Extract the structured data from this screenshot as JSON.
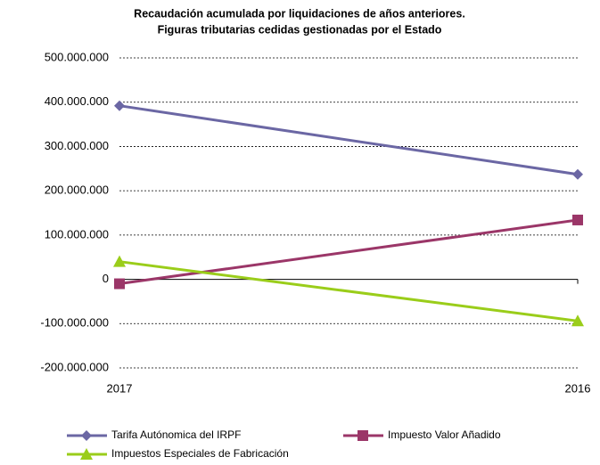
{
  "chart_data": {
    "type": "line",
    "title": [
      "Recaudación acumulada por liquidaciones de años anteriores.",
      "Figuras tributarias cedidas gestionadas por el Estado"
    ],
    "categories": [
      "2017",
      "2016"
    ],
    "series": [
      {
        "name": "Tarifa Autónomica del IRPF",
        "color": "#6b67a4",
        "marker": "diamond",
        "values": [
          392000000,
          237000000
        ]
      },
      {
        "name": "Impuesto Valor Añadido",
        "color": "#9b3668",
        "marker": "square",
        "values": [
          -10000000,
          134000000
        ]
      },
      {
        "name": "Impuestos Especiales de Fabricación",
        "color": "#9acd1a",
        "marker": "triangle",
        "values": [
          40000000,
          -94000000
        ]
      }
    ],
    "ylim": [
      -200000000,
      500000000
    ],
    "yticks": [
      {
        "value": -200000000,
        "label": "-200.000.000"
      },
      {
        "value": -100000000,
        "label": "-100.000.000"
      },
      0,
      {
        "value": 100000000,
        "label": "100.000.000"
      },
      {
        "value": 200000000,
        "label": "200.000.000"
      },
      {
        "value": 300000000,
        "label": "300.000.000"
      },
      {
        "value": 400000000,
        "label": "400.000.000"
      },
      {
        "value": 500000000,
        "label": "500.000.000"
      }
    ],
    "grid": true
  }
}
